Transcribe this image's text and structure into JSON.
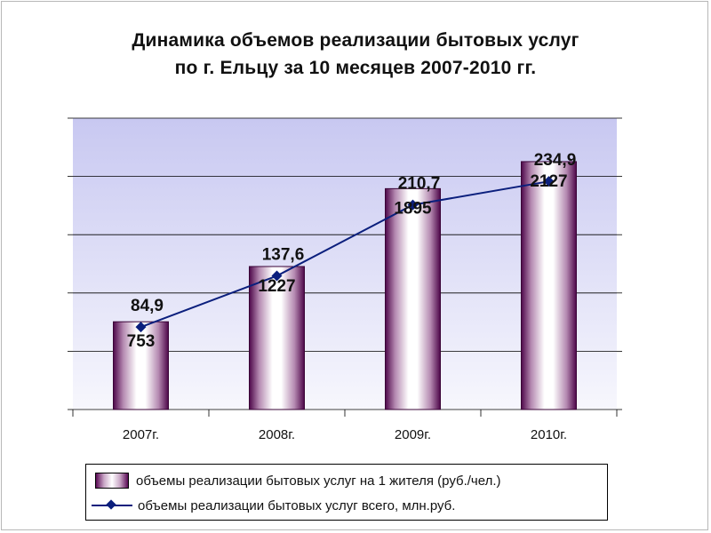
{
  "title_line1": "Динамика объемов реализации бытовых услуг",
  "title_line2": "по г. Ельцу за 10 месяцев 2007-2010 гг.",
  "chart_data": {
    "type": "bar+line",
    "categories": [
      "2007г.",
      "2008г.",
      "2009г.",
      "2010г."
    ],
    "series": [
      {
        "name": "объемы реализации бытовых услуг на 1 жителя  (руб./чел.)",
        "type": "bar",
        "values": [
          753,
          1227,
          1895,
          2127
        ],
        "labels": [
          "753",
          "1227",
          "1895",
          "2127"
        ]
      },
      {
        "name": "объемы реализации бытовых услуг всего, млн.руб.",
        "type": "line",
        "values": [
          84.9,
          137.6,
          210.7,
          234.9
        ],
        "labels": [
          "84,9",
          "137,6",
          "210,7",
          "234,9"
        ]
      }
    ],
    "bar_axis_max": 2500,
    "line_axis_max": 300,
    "gridlines": 5,
    "legend_position": "bottom",
    "colors": {
      "plot_bg_top": "#ccccf2",
      "plot_bg_bottom": "#f7f7fd",
      "bar_dark": "#5a0a55",
      "line": "#0b1f7d",
      "grid": "#000000"
    }
  }
}
